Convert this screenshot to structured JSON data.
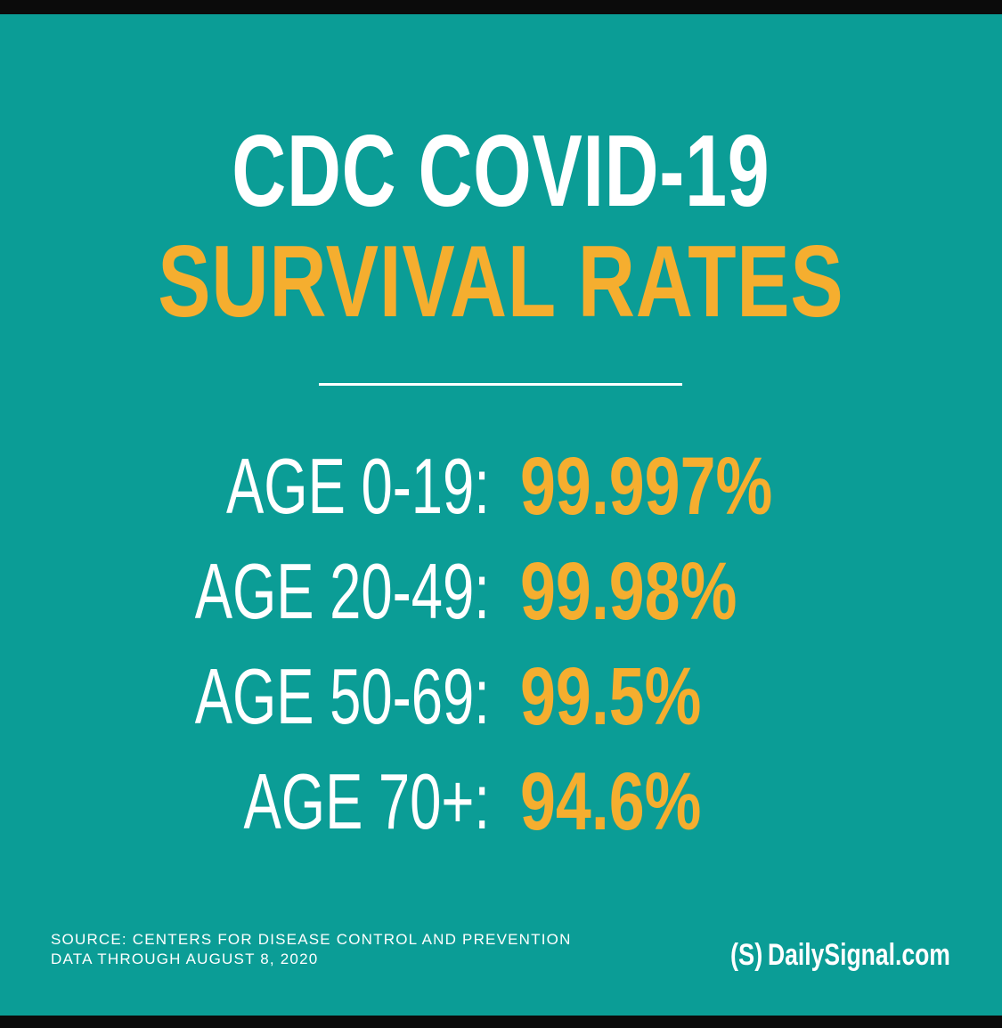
{
  "title": {
    "line1": "CDC COVID-19",
    "line2": "SURVIVAL RATES"
  },
  "rates": [
    {
      "label": "AGE 0-19:",
      "value": "99.997%"
    },
    {
      "label": "AGE 20-49:",
      "value": "99.98%"
    },
    {
      "label": "AGE 50-69:",
      "value": "99.5%"
    },
    {
      "label": "AGE 70+:",
      "value": "94.6%"
    }
  ],
  "source": {
    "line1": "SOURCE: CENTERS FOR DISEASE CONTROL AND PREVENTION",
    "line2": "DATA THROUGH AUGUST 8, 2020"
  },
  "brand": {
    "logo": "(S)",
    "name": "DailySignal.com"
  },
  "colors": {
    "background": "#0b9d96",
    "accent": "#f5ae2f",
    "text": "#ffffff"
  }
}
